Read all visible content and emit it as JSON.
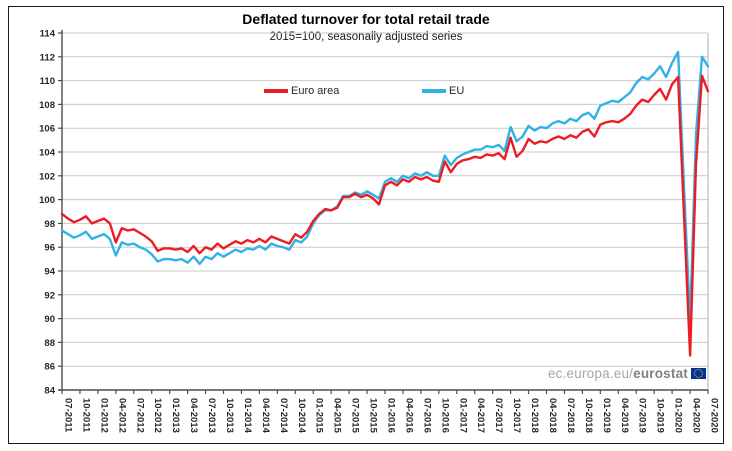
{
  "figure": {
    "title": "Deflated turnover for total retail trade",
    "subtitle": "2015=100, seasonally adjusted series",
    "watermark_prefix": "ec.europa.eu/",
    "watermark_bold": "eurostat",
    "eu_flag_icon_colors": {
      "background": "#003399",
      "stars": "#ffcc00"
    }
  },
  "legend": {
    "items": [
      {
        "label": "Euro area",
        "color": "#ed1c24"
      },
      {
        "label": "EU",
        "color": "#2fb3e6"
      }
    ]
  },
  "style_colors": {
    "gridline": "#c9c9c9",
    "axis": "#4d4d4d",
    "tick_label": "#262626",
    "plot_right_border": "#bfbfbf"
  },
  "chart_data": {
    "type": "line",
    "title": "Deflated turnover for total retail trade",
    "subtitle": "2015=100, seasonally adjusted series",
    "frequency": "monthly",
    "x_start": "07-2011",
    "x_end": "07-2020",
    "ylim": [
      84,
      114
    ],
    "y_ticks": [
      84,
      86,
      88,
      90,
      92,
      94,
      96,
      98,
      100,
      102,
      104,
      106,
      108,
      110,
      112,
      114
    ],
    "x_tick_step_months": 3,
    "x_tick_labels": [
      "07-2011",
      "10-2011",
      "01-2012",
      "04-2012",
      "07-2012",
      "10-2012",
      "01-2013",
      "04-2013",
      "07-2013",
      "10-2013",
      "01-2014",
      "04-2014",
      "07-2014",
      "10-2014",
      "01-2015",
      "04-2015",
      "07-2015",
      "10-2015",
      "01-2016",
      "04-2016",
      "07-2016",
      "10-2016",
      "01-2017",
      "04-2017",
      "07-2017",
      "10-2017",
      "01-2018",
      "04-2018",
      "07-2018",
      "10-2018",
      "01-2019",
      "04-2019",
      "07-2019",
      "10-2019",
      "01-2020",
      "04-2020",
      "07-2020"
    ],
    "grid": "horizontal",
    "legend_position": "top-center",
    "series": [
      {
        "name": "EU",
        "color": "#2fb3e6",
        "values": [
          97.4,
          97.1,
          96.8,
          97.0,
          97.3,
          96.7,
          96.9,
          97.1,
          96.7,
          95.3,
          96.4,
          96.2,
          96.3,
          96.0,
          95.8,
          95.4,
          94.8,
          95.0,
          95.0,
          94.9,
          95.0,
          94.7,
          95.2,
          94.6,
          95.2,
          95.0,
          95.5,
          95.2,
          95.5,
          95.8,
          95.6,
          95.9,
          95.8,
          96.1,
          95.8,
          96.3,
          96.1,
          96.0,
          95.8,
          96.6,
          96.4,
          96.9,
          98.0,
          98.7,
          99.1,
          99.1,
          99.4,
          100.3,
          100.3,
          100.6,
          100.4,
          100.7,
          100.4,
          100.1,
          101.5,
          101.8,
          101.5,
          102.0,
          101.8,
          102.2,
          102.0,
          102.3,
          102.0,
          102.0,
          103.7,
          102.9,
          103.5,
          103.8,
          104.0,
          104.2,
          104.2,
          104.5,
          104.4,
          104.6,
          104.1,
          106.1,
          104.9,
          105.3,
          106.2,
          105.8,
          106.1,
          106.0,
          106.4,
          106.6,
          106.4,
          106.8,
          106.6,
          107.1,
          107.3,
          106.8,
          107.9,
          108.1,
          108.3,
          108.2,
          108.6,
          109.0,
          109.8,
          110.3,
          110.1,
          110.6,
          111.2,
          110.3,
          111.5,
          112.4,
          100.9,
          89.7,
          105.5,
          112.0,
          111.2
        ]
      },
      {
        "name": "Euro area",
        "color": "#ed1c24",
        "values": [
          98.8,
          98.4,
          98.1,
          98.3,
          98.6,
          98.0,
          98.2,
          98.4,
          98.0,
          96.4,
          97.6,
          97.4,
          97.5,
          97.2,
          96.9,
          96.5,
          95.7,
          95.9,
          95.9,
          95.8,
          95.9,
          95.6,
          96.1,
          95.5,
          96.0,
          95.8,
          96.3,
          95.9,
          96.2,
          96.5,
          96.3,
          96.6,
          96.4,
          96.7,
          96.4,
          96.9,
          96.7,
          96.5,
          96.3,
          97.1,
          96.8,
          97.3,
          98.2,
          98.8,
          99.2,
          99.1,
          99.3,
          100.2,
          100.2,
          100.5,
          100.2,
          100.4,
          100.1,
          99.6,
          101.2,
          101.5,
          101.2,
          101.7,
          101.5,
          101.9,
          101.7,
          101.9,
          101.6,
          101.5,
          103.2,
          102.3,
          103.0,
          103.3,
          103.4,
          103.6,
          103.5,
          103.8,
          103.7,
          103.9,
          103.4,
          105.2,
          103.6,
          104.1,
          105.1,
          104.7,
          104.9,
          104.8,
          105.1,
          105.3,
          105.1,
          105.4,
          105.2,
          105.7,
          105.9,
          105.3,
          106.3,
          106.5,
          106.6,
          106.5,
          106.8,
          107.2,
          107.9,
          108.4,
          108.2,
          108.8,
          109.3,
          108.4,
          109.7,
          110.3,
          98.5,
          86.9,
          103.0,
          110.4,
          109.1
        ]
      }
    ]
  }
}
